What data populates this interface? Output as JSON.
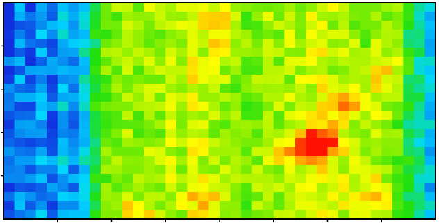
{
  "chart_data": {
    "type": "heatmap",
    "title": "",
    "xlabel": "",
    "ylabel": "",
    "colormap": "jet",
    "value_range": [
      0,
      1
    ],
    "colormap_stops": [
      {
        "v": 0.0,
        "color": "#1030e0"
      },
      {
        "v": 0.22,
        "color": "#00d8ff"
      },
      {
        "v": 0.45,
        "color": "#20e010"
      },
      {
        "v": 0.6,
        "color": "#90f000"
      },
      {
        "v": 0.72,
        "color": "#ffff00"
      },
      {
        "v": 0.86,
        "color": "#ffa000"
      },
      {
        "v": 1.0,
        "color": "#ff1000"
      }
    ],
    "frame_color": "#000000",
    "x_ticks": 8,
    "y_ticks": 5,
    "columns": 40,
    "rows": 24,
    "column_profile": [
      0.05,
      0.12,
      0.08,
      0.15,
      0.1,
      0.2,
      0.12,
      0.25,
      0.42,
      0.55,
      0.58,
      0.6,
      0.58,
      0.62,
      0.6,
      0.64,
      0.62,
      0.7,
      0.66,
      0.62,
      0.6,
      0.58,
      0.56,
      0.58,
      0.62,
      0.6,
      0.62,
      0.64,
      0.66,
      0.68,
      0.64,
      0.62,
      0.6,
      0.58,
      0.62,
      0.6,
      0.55,
      0.4,
      0.32,
      0.2
    ],
    "hotspots": [
      {
        "cx": 0.73,
        "cy": 0.65,
        "rx": 0.05,
        "ry": 0.08,
        "amp": 0.45
      },
      {
        "cx": 0.66,
        "cy": 0.7,
        "rx": 0.05,
        "ry": 0.04,
        "amp": 0.28
      },
      {
        "cx": 0.79,
        "cy": 0.48,
        "rx": 0.05,
        "ry": 0.08,
        "amp": 0.22
      },
      {
        "cx": 0.5,
        "cy": 0.12,
        "rx": 0.03,
        "ry": 0.1,
        "amp": 0.22
      },
      {
        "cx": 0.47,
        "cy": 0.9,
        "rx": 0.04,
        "ry": 0.08,
        "amp": 0.18
      },
      {
        "cx": 0.84,
        "cy": 0.9,
        "rx": 0.05,
        "ry": 0.1,
        "amp": 0.2
      },
      {
        "cx": 0.88,
        "cy": 0.32,
        "rx": 0.05,
        "ry": 0.08,
        "amp": 0.18
      },
      {
        "cx": 0.3,
        "cy": 0.95,
        "rx": 0.06,
        "ry": 0.06,
        "amp": 0.16
      },
      {
        "cx": 0.12,
        "cy": 0.6,
        "rx": 0.04,
        "ry": 0.08,
        "amp": -0.1
      }
    ]
  }
}
